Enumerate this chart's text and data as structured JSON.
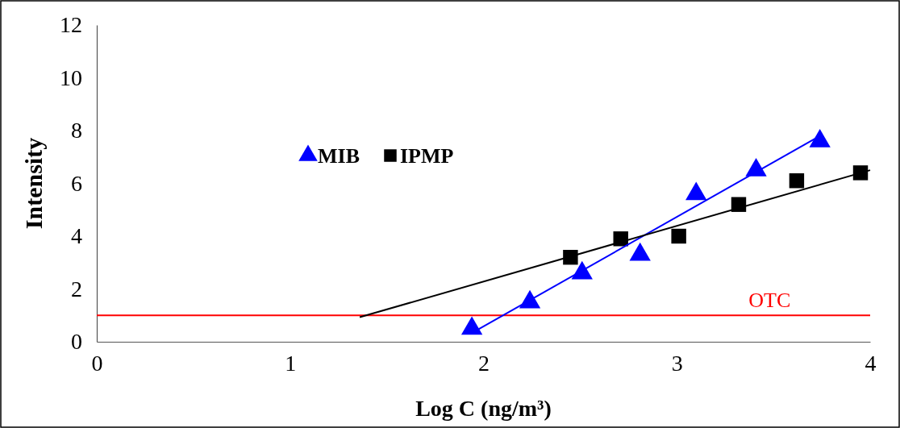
{
  "chart_data": {
    "type": "scatter",
    "xlabel": "Log C (ng/m³)",
    "ylabel": "Intensity",
    "xlim": [
      0,
      4
    ],
    "xticks": [
      0,
      1,
      2,
      3,
      4
    ],
    "ylim": [
      0,
      12
    ],
    "yticks": [
      0,
      2,
      4,
      6,
      8,
      10,
      12
    ],
    "grid": false,
    "legend": "left",
    "series": [
      {
        "name": "MIB",
        "marker": "triangle",
        "color": "#0000ff",
        "x": [
          1.94,
          2.24,
          2.51,
          2.81,
          3.1,
          3.41,
          3.74
        ],
        "values": [
          0.5,
          1.5,
          2.6,
          3.3,
          5.6,
          6.5,
          7.6
        ]
      },
      {
        "name": "IPMP",
        "marker": "square",
        "color": "#000000",
        "x": [
          2.45,
          2.71,
          3.01,
          3.32,
          3.62,
          3.95
        ],
        "values": [
          3.2,
          3.9,
          4.0,
          5.2,
          6.1,
          6.4
        ]
      },
      {
        "type": "line",
        "color": "#0000ff",
        "x": [
          1.94,
          3.74
        ],
        "values": [
          0.33,
          7.8
        ]
      },
      {
        "type": "line",
        "color": "#000000",
        "x": [
          1.36,
          4.0
        ],
        "values": [
          0.93,
          6.5
        ]
      }
    ],
    "ref_lines": [
      {
        "axis": "y",
        "value": 1,
        "label": "OTC",
        "color": "#ff0000"
      }
    ]
  }
}
